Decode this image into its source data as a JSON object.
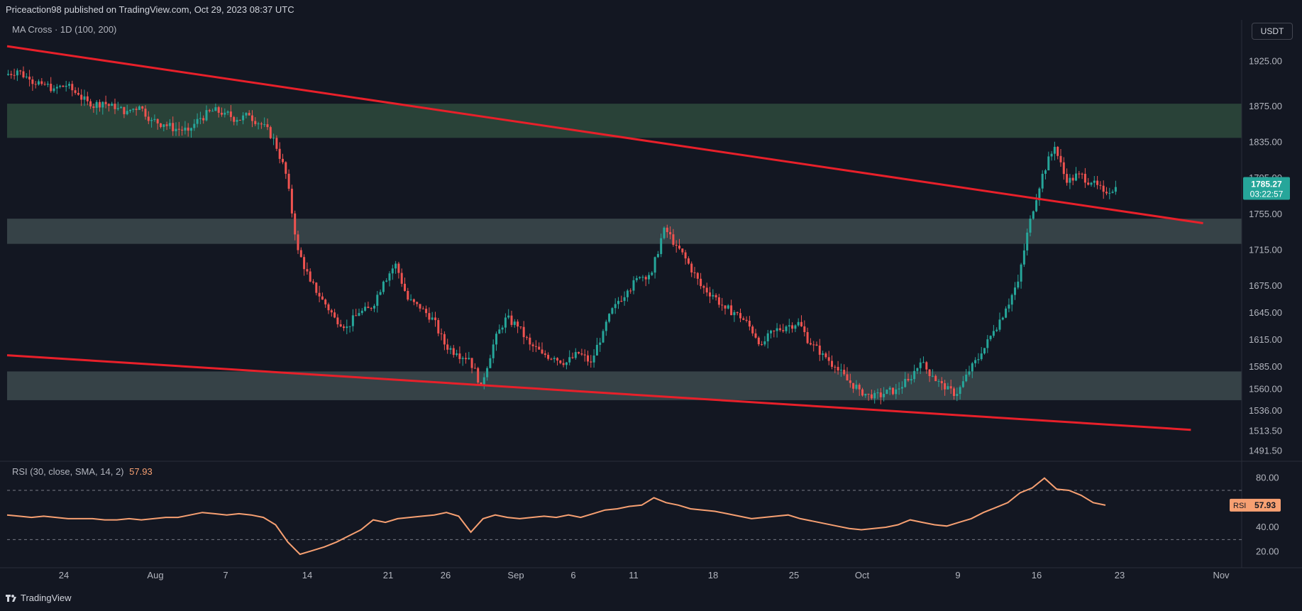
{
  "header": {
    "publisher_line": "Priceaction98 published on TradingView.com, Oct 29, 2023 08:37 UTC"
  },
  "indicator_label": "MA Cross · 1D (100, 200)",
  "currency_button": "USDT",
  "footer": {
    "brand": "TradingView",
    "logo": "tradingview-logo"
  },
  "colors": {
    "background": "#131722",
    "up": "#26a69a",
    "down": "#ef5350",
    "trendline": "#e8202a",
    "zone": "#3d4a4d",
    "rsi": "#f7a072"
  },
  "chart_data": [
    {
      "type": "candlestick",
      "x_ticks": [
        "24",
        "Aug",
        "7",
        "14",
        "21",
        "26",
        "Sep",
        "6",
        "11",
        "18",
        "25",
        "Oct",
        "9",
        "16",
        "23",
        "Nov"
      ],
      "y_ticks": [
        1925.0,
        1875.0,
        1835.0,
        1795.0,
        1755.0,
        1715.0,
        1675.0,
        1645.0,
        1615.0,
        1585.0,
        1560.0,
        1536.0,
        1513.5,
        1491.5
      ],
      "last_price": {
        "value": "1785.27",
        "countdown": "03:22:57"
      },
      "ylim": [
        1480,
        1950
      ],
      "zones": [
        {
          "from": 1840,
          "to": 1878,
          "tone": "green"
        },
        {
          "from": 1722,
          "to": 1750,
          "tone": "gray"
        },
        {
          "from": 1548,
          "to": 1580,
          "tone": "gray"
        }
      ],
      "trendlines": [
        {
          "x1_day": 0,
          "y1": 1942,
          "x2_day": 98,
          "y2": 1745
        },
        {
          "x1_day": 0,
          "y1": 1598,
          "x2_day": 97,
          "y2": 1515
        }
      ],
      "daily_closes": [
        1915,
        1905,
        1900,
        1895,
        1898,
        1888,
        1875,
        1880,
        1872,
        1870,
        1875,
        1860,
        1855,
        1850,
        1848,
        1862,
        1870,
        1868,
        1860,
        1865,
        1855,
        1840,
        1800,
        1715,
        1680,
        1660,
        1640,
        1630,
        1645,
        1650,
        1680,
        1700,
        1660,
        1650,
        1640,
        1610,
        1600,
        1595,
        1565,
        1610,
        1640,
        1630,
        1610,
        1600,
        1595,
        1590,
        1600,
        1590,
        1625,
        1655,
        1670,
        1685,
        1690,
        1740,
        1720,
        1700,
        1675,
        1665,
        1650,
        1645,
        1630,
        1610,
        1625,
        1630,
        1635,
        1610,
        1600,
        1585,
        1570,
        1560,
        1550,
        1555,
        1560,
        1570,
        1590,
        1575,
        1560,
        1555,
        1580,
        1600,
        1625,
        1650,
        1680,
        1750,
        1800,
        1830,
        1790,
        1800,
        1790,
        1780,
        1785.27
      ]
    },
    {
      "type": "line",
      "title": "RSI (30, close, SMA, 14, 2)",
      "current_value": "57.93",
      "y_ticks": [
        80.0,
        60.0,
        40.0,
        20.0
      ],
      "bands": [
        70,
        30
      ],
      "ylim": [
        10,
        85
      ],
      "series": [
        {
          "name": "RSI",
          "values": [
            50,
            49,
            48,
            49,
            48,
            47,
            47,
            47,
            46,
            46,
            47,
            46,
            47,
            48,
            48,
            50,
            52,
            51,
            50,
            51,
            50,
            48,
            42,
            28,
            18,
            21,
            24,
            28,
            33,
            38,
            46,
            44,
            47,
            48,
            49,
            50,
            52,
            49,
            36,
            47,
            50,
            48,
            47,
            48,
            49,
            48,
            50,
            48,
            51,
            54,
            55,
            57,
            58,
            64,
            60,
            58,
            55,
            54,
            53,
            51,
            49,
            47,
            48,
            49,
            50,
            47,
            45,
            43,
            41,
            39,
            38,
            39,
            40,
            42,
            46,
            44,
            42,
            41,
            44,
            47,
            52,
            56,
            60,
            68,
            72,
            80,
            71,
            70,
            66,
            60,
            57.93
          ]
        }
      ]
    }
  ]
}
